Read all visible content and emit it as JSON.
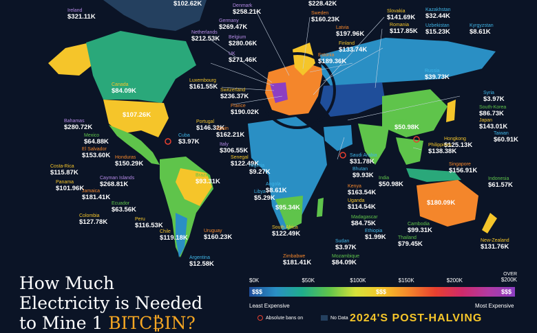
{
  "title": {
    "line1": "How Much",
    "line2": "Electricity is Needed",
    "line3_pre": "to Mine 1 ",
    "line3_highlight": "BITC",
    "line3_tail": "IN?"
  },
  "subtitle": "2024'S POST-HALVING",
  "scale": {
    "ticks": [
      "$0K",
      "$50K",
      "$100K",
      "$150K",
      "$200K"
    ],
    "last_over": "OVER",
    "last_tick": "$200K",
    "symbol_low": "$$$",
    "symbol_mid": "$$$",
    "symbol_high": "$$$",
    "caption_low": "Least Expensive",
    "caption_high": "Most Expensive"
  },
  "legend": {
    "ban_label": "Absolute bans on",
    "nodata_label": "No Data"
  },
  "colors": {
    "ocean": "#0b1426",
    "land_nodata": "#24405f",
    "land_low": "#1f4e9a",
    "land_teal": "#2a8fc4",
    "land_green": "#5fc44b",
    "land_yellow": "#f5c52a",
    "land_orange": "#f4862b",
    "land_purple": "#8d3fc2"
  },
  "countries": [
    {
      "name": "",
      "value": "$102.62K",
      "nc": "#ffffff"
    },
    {
      "name": "Ireland",
      "value": "$321.11K",
      "nc": "#b58ae6"
    },
    {
      "name": "Denmark",
      "value": "$258.21K",
      "nc": "#b58ae6"
    },
    {
      "name": "",
      "value": "$228.42K",
      "nc": "#ffffff"
    },
    {
      "name": "Germany",
      "value": "$269.47K",
      "nc": "#b58ae6"
    },
    {
      "name": "Netherlands",
      "value": "$212.53K",
      "nc": "#b58ae6"
    },
    {
      "name": "Belgium",
      "value": "$280.06K",
      "nc": "#b58ae6"
    },
    {
      "name": "Sweden",
      "value": "$160.23K",
      "nc": "#f4862b"
    },
    {
      "name": "Latvia",
      "value": "$197.96K",
      "nc": "#f4862b"
    },
    {
      "name": "Slovakia",
      "value": "$141.69K",
      "nc": "#f5c52a"
    },
    {
      "name": "Romania",
      "value": "$117.85K",
      "nc": "#f5c52a"
    },
    {
      "name": "Kazakhstan",
      "value": "$32.44K",
      "nc": "#3fb6e8"
    },
    {
      "name": "Uzbekistan",
      "value": "$15.23K",
      "nc": "#3fb6e8"
    },
    {
      "name": "Kyrgyzstan",
      "value": "$8.61K",
      "nc": "#3fb6e8"
    },
    {
      "name": "UK",
      "value": "$271.46K",
      "nc": "#b58ae6"
    },
    {
      "name": "Finland",
      "value": "$133.74K",
      "nc": "#f5c52a"
    },
    {
      "name": "Estonia",
      "value": "$189.36K",
      "nc": "#f4862b"
    },
    {
      "name": "Canada",
      "value": "$84.09K",
      "nc": "#f5c52a"
    },
    {
      "name": "Luxembourg",
      "value": "$161.55K",
      "nc": "#f5c52a"
    },
    {
      "name": "Switzerland",
      "value": "$236.37K",
      "nc": "#f5c52a"
    },
    {
      "name": "Russia",
      "value": "$39.73K",
      "nc": "#3fb6e8"
    },
    {
      "name": "France",
      "value": "$190.02K",
      "nc": "#f4862b"
    },
    {
      "name": "Syria",
      "value": "$3.97K",
      "nc": "#3fb6e8"
    },
    {
      "name": "USA",
      "value": "$107.26K",
      "nc": "#f5c52a"
    },
    {
      "name": "Portugal",
      "value": "$146.32K",
      "nc": "#f5c52a"
    },
    {
      "name": "China",
      "value": "$50.98K",
      "nc": "#5fc44b"
    },
    {
      "name": "South-Korea",
      "value": "$86.73K",
      "nc": "#5fc44b"
    },
    {
      "name": "Bahamas",
      "value": "$280.72K",
      "nc": "#b58ae6"
    },
    {
      "name": "Spain",
      "value": "$162.21K",
      "nc": "#f4862b"
    },
    {
      "name": "Japan",
      "value": "$143.01K",
      "nc": "#f5c52a"
    },
    {
      "name": "Mexico",
      "value": "$64.88K",
      "nc": "#5fc44b"
    },
    {
      "name": "Cuba",
      "value": "$3.97K",
      "nc": "#3fb6e8"
    },
    {
      "name": "Taiwan",
      "value": "$60.91K",
      "nc": "#3fb6e8"
    },
    {
      "name": "Hongkong",
      "value": "$125.13K",
      "nc": "#f5c52a"
    },
    {
      "name": "El Salvador",
      "value": "$153.60K",
      "nc": "#f4862b"
    },
    {
      "name": "Italy",
      "value": "$306.55K",
      "nc": "#b58ae6"
    },
    {
      "name": "Philippines",
      "value": "$138.38K",
      "nc": "#f5c52a"
    },
    {
      "name": "Honduras",
      "value": "$150.29K",
      "nc": "#f4862b"
    },
    {
      "name": "Senegal",
      "value": "$122.49K",
      "nc": "#f5c52a"
    },
    {
      "name": "Saudi Arabia",
      "value": "$31.78K",
      "nc": "#3fb6e8"
    },
    {
      "name": "Costa-Rica",
      "value": "$115.87K",
      "nc": "#f5c52a"
    },
    {
      "name": "Nigeria",
      "value": "$9.27K",
      "nc": "#3fb6e8"
    },
    {
      "name": "Bhutan",
      "value": "$9.93K",
      "nc": "#3fb6e8"
    },
    {
      "name": "Singapore",
      "value": "$156.91K",
      "nc": "#f4862b"
    },
    {
      "name": "Panama",
      "value": "$101.96K",
      "nc": "#f5c52a"
    },
    {
      "name": "Cayman Islands",
      "value": "$268.81K",
      "nc": "#b58ae6"
    },
    {
      "name": "Brazil",
      "value": "$93.31K",
      "nc": "#5fc44b"
    },
    {
      "name": "India",
      "value": "$50.98K",
      "nc": "#5fc44b"
    },
    {
      "name": "Indonesia",
      "value": "$61.57K",
      "nc": "#5fc44b"
    },
    {
      "name": "Jamaica",
      "value": "$181.41K",
      "nc": "#f4862b"
    },
    {
      "name": "Angola",
      "value": "$8.61K",
      "nc": "#3fb6e8"
    },
    {
      "name": "Kenya",
      "value": "$163.54K",
      "nc": "#f4862b"
    },
    {
      "name": "Libya",
      "value": "$5.29K",
      "nc": "#3fb6e8"
    },
    {
      "name": "Uganda",
      "value": "$114.54K",
      "nc": "#f5c52a"
    },
    {
      "name": "Ecuador",
      "value": "$63.56K",
      "nc": "#5fc44b"
    },
    {
      "name": "Namibia",
      "value": "$95.34K",
      "nc": "#5fc44b"
    },
    {
      "name": "Australia",
      "value": "$180.09K",
      "nc": "#f4862b"
    },
    {
      "name": "Colombia",
      "value": "$127.78K",
      "nc": "#f5c52a"
    },
    {
      "name": "Madagascar",
      "value": "$84.75K",
      "nc": "#5fc44b"
    },
    {
      "name": "Peru",
      "value": "$116.53K",
      "nc": "#f5c52a"
    },
    {
      "name": "Cambodia",
      "value": "$99.31K",
      "nc": "#5fc44b"
    },
    {
      "name": "South Africa",
      "value": "$122.49K",
      "nc": "#f5c52a"
    },
    {
      "name": "Chile",
      "value": "$119.18K",
      "nc": "#f5c52a"
    },
    {
      "name": "Uruguay",
      "value": "$160.23K",
      "nc": "#f4862b"
    },
    {
      "name": "Ethiopia",
      "value": "$1.99K",
      "nc": "#3fb6e8"
    },
    {
      "name": "Thailand",
      "value": "$79.45K",
      "nc": "#5fc44b"
    },
    {
      "name": "Sudan",
      "value": "$3.97K",
      "nc": "#3fb6e8"
    },
    {
      "name": "New-Zealand",
      "value": "$131.76K",
      "nc": "#f5c52a"
    },
    {
      "name": "Argentina",
      "value": "$12.58K",
      "nc": "#3fb6e8"
    },
    {
      "name": "Zimbabwe",
      "value": "$181.41K",
      "nc": "#f4862b"
    },
    {
      "name": "Mozambique",
      "value": "$84.09K",
      "nc": "#5fc44b"
    }
  ]
}
